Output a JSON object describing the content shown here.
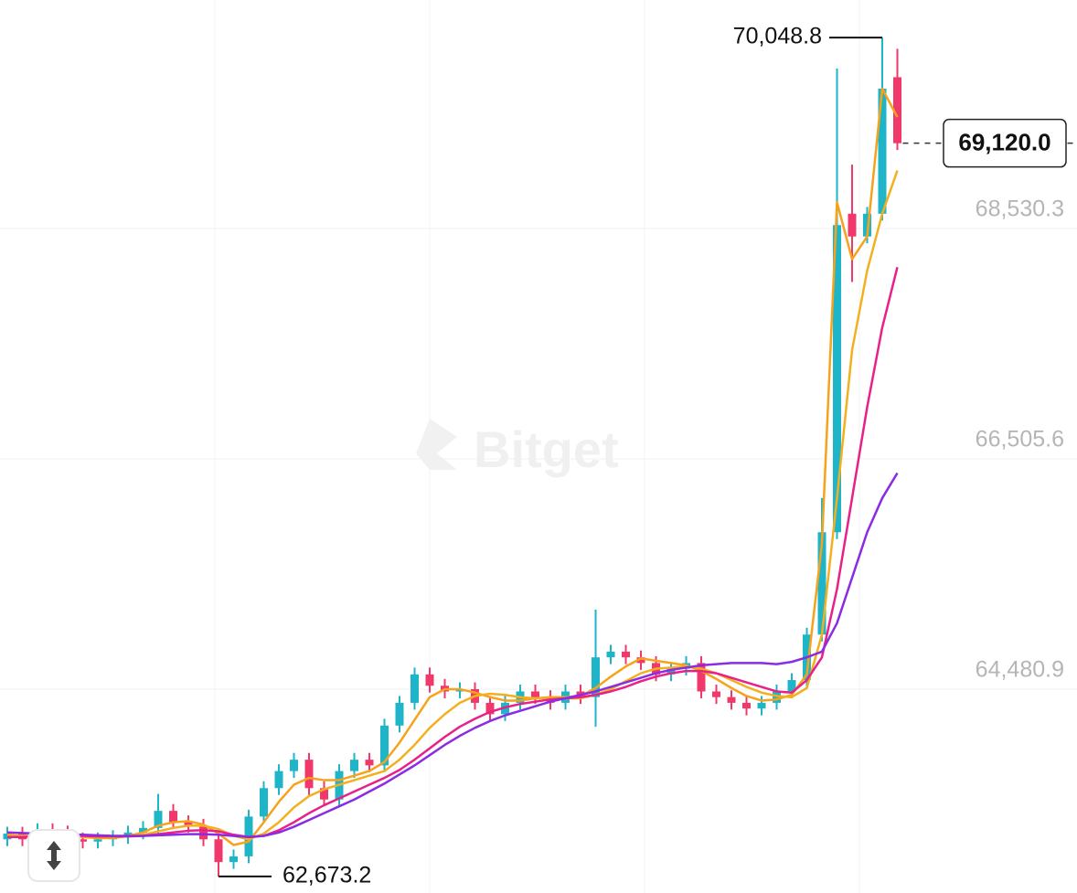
{
  "chart_data": {
    "type": "candlestick",
    "watermark": "Bitget",
    "up_color": "#1fb5c8",
    "down_color": "#f0386b",
    "ylim": [
      62528,
      70379
    ],
    "yticks": [
      {
        "value": 64480.9,
        "label": "64,480.9"
      },
      {
        "value": 66505.6,
        "label": "66,505.6"
      },
      {
        "value": 68530.3,
        "label": "68,530.3"
      }
    ],
    "grid": true,
    "annotations": {
      "high": "70,048.8",
      "low": "62,673.2",
      "last": "69,120.0"
    },
    "open": [
      63000,
      63050,
      63000,
      63080,
      63060,
      63000,
      62980,
      63000,
      63020,
      63060,
      63100,
      63250,
      63150,
      63120,
      63000,
      62800,
      62850,
      63200,
      63450,
      63600,
      63700,
      63450,
      63350,
      63600,
      63700,
      63650,
      64000,
      64200,
      64450,
      64350,
      64300,
      64320,
      64200,
      64100,
      64200,
      64300,
      64250,
      64200,
      64300,
      64250,
      64600,
      64650,
      64600,
      64550,
      64450,
      64500,
      64550,
      64300,
      64250,
      64200,
      64150,
      64200,
      64300,
      64400,
      64800,
      65700,
      68500,
      68300,
      68500,
      69700
    ],
    "high": [
      63110,
      63110,
      63140,
      63140,
      63120,
      63060,
      63060,
      63080,
      63120,
      63160,
      63400,
      63310,
      63210,
      63180,
      63060,
      62910,
      63260,
      63510,
      63660,
      63760,
      63760,
      63510,
      63660,
      63760,
      63760,
      64060,
      64260,
      64510,
      64510,
      64410,
      64380,
      64380,
      64260,
      64260,
      64360,
      64360,
      64310,
      64360,
      64360,
      65019,
      64710,
      64710,
      64660,
      64610,
      64560,
      64610,
      64610,
      64360,
      64310,
      64260,
      64260,
      64360,
      64460,
      64860,
      66000,
      69776,
      68932,
      68560,
      70048.8,
      69950
    ],
    "low": [
      62940,
      62940,
      62940,
      63000,
      62940,
      62920,
      62920,
      62940,
      62960,
      63000,
      63040,
      63090,
      63060,
      62940,
      62673.2,
      62740,
      62790,
      63140,
      63390,
      63540,
      63390,
      63290,
      63290,
      63540,
      63590,
      63590,
      63940,
      64140,
      64290,
      64240,
      64240,
      64140,
      64040,
      64040,
      64140,
      64190,
      64140,
      64140,
      64190,
      63990,
      64540,
      64540,
      64490,
      64390,
      64390,
      64440,
      64240,
      64190,
      64140,
      64090,
      64090,
      64140,
      64240,
      64340,
      64740,
      65640,
      67900,
      68240,
      68440,
      69060
    ],
    "close": [
      63050,
      63000,
      63080,
      63060,
      63000,
      62980,
      63000,
      63020,
      63060,
      63100,
      63250,
      63150,
      63120,
      63000,
      62800,
      62850,
      63200,
      63450,
      63600,
      63700,
      63450,
      63350,
      63600,
      63700,
      63650,
      64000,
      64200,
      64450,
      64350,
      64300,
      64320,
      64200,
      64100,
      64200,
      64300,
      64250,
      64200,
      64300,
      64250,
      64600,
      64650,
      64600,
      64550,
      64450,
      64500,
      64550,
      64300,
      64250,
      64200,
      64150,
      64200,
      64300,
      64400,
      64800,
      65700,
      68400,
      68300,
      68500,
      69600,
      69120.0
    ],
    "moving_averages": [
      {
        "color": "#f7a21b",
        "values": [
          63040,
          63030,
          63040,
          63050,
          63040,
          63020,
          63010,
          63010,
          63030,
          63060,
          63120,
          63150,
          63160,
          63130,
          63050,
          62950,
          62980,
          63150,
          63330,
          63480,
          63540,
          63520,
          63520,
          63560,
          63600,
          63680,
          63850,
          64050,
          64250,
          64320,
          64320,
          64290,
          64250,
          64220,
          64220,
          64240,
          64250,
          64250,
          64260,
          64330,
          64430,
          64520,
          64590,
          64570,
          64550,
          64530,
          64480,
          64410,
          64330,
          64260,
          64220,
          64230,
          64270,
          64450,
          65600,
          68600,
          68100,
          68300,
          69600,
          69350
        ]
      },
      {
        "color": "#f3b01e",
        "values": [
          63030,
          63030,
          63035,
          63040,
          63040,
          63030,
          63020,
          63020,
          63025,
          63040,
          63070,
          63100,
          63120,
          63120,
          63090,
          63030,
          63000,
          63050,
          63150,
          63280,
          63380,
          63440,
          63480,
          63520,
          63560,
          63600,
          63700,
          63830,
          63980,
          64100,
          64200,
          64260,
          64280,
          64270,
          64250,
          64240,
          64240,
          64240,
          64240,
          64270,
          64320,
          64390,
          64460,
          64500,
          64510,
          64520,
          64500,
          64460,
          64400,
          64340,
          64290,
          64260,
          64250,
          64330,
          64800,
          66000,
          67300,
          68000,
          68500,
          68880
        ]
      },
      {
        "color": "#e8208a",
        "values": [
          63020,
          63020,
          63025,
          63030,
          63030,
          63030,
          63025,
          63025,
          63025,
          63030,
          63045,
          63060,
          63075,
          63080,
          63070,
          63040,
          63020,
          63030,
          63080,
          63150,
          63230,
          63300,
          63360,
          63420,
          63480,
          63540,
          63610,
          63700,
          63800,
          63900,
          63990,
          64060,
          64120,
          64160,
          64190,
          64210,
          64230,
          64240,
          64250,
          64270,
          64300,
          64340,
          64390,
          64430,
          64460,
          64480,
          64480,
          64460,
          64420,
          64380,
          64340,
          64300,
          64290,
          64400,
          64600,
          65200,
          66000,
          66800,
          67500,
          68030
        ]
      },
      {
        "color": "#8b2be2",
        "values": [
          63060,
          63055,
          63050,
          63045,
          63040,
          63040,
          63035,
          63030,
          63030,
          63030,
          63035,
          63040,
          63045,
          63045,
          63040,
          63030,
          63020,
          63030,
          63060,
          63110,
          63170,
          63230,
          63290,
          63350,
          63420,
          63490,
          63570,
          63650,
          63740,
          63830,
          63910,
          63980,
          64040,
          64090,
          64130,
          64170,
          64210,
          64240,
          64270,
          64300,
          64340,
          64380,
          64420,
          64460,
          64490,
          64510,
          64530,
          64540,
          64550,
          64550,
          64550,
          64540,
          64560,
          64600,
          64650,
          64900,
          65300,
          65700,
          66000,
          66220
        ]
      }
    ]
  }
}
